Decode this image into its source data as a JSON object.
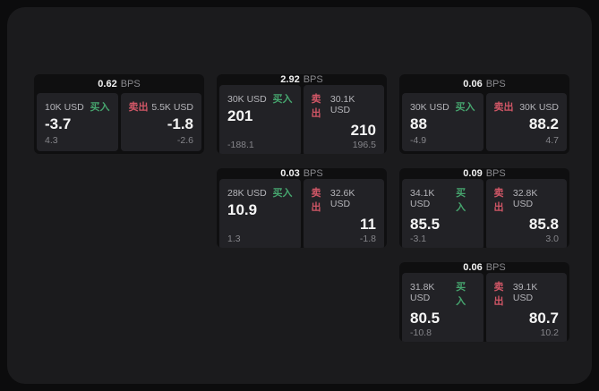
{
  "labels": {
    "bps_unit": "BPS",
    "buy": "买入",
    "sell": "卖出"
  },
  "colors": {
    "page_background": "#0c0c0d",
    "panel_background": "#1b1b1d",
    "card_background": "#0f0f10",
    "tile_background": "#222226",
    "buy_green": "#46a56e",
    "sell_red": "#d05666"
  },
  "cards": [
    {
      "bps": "0.62",
      "buy": {
        "size": "10K USD",
        "price": "-3.7",
        "delta": "4.3"
      },
      "sell": {
        "size": "5.5K USD",
        "price": "-1.8",
        "delta": "-2.6"
      }
    },
    {
      "bps": "2.92",
      "buy": {
        "size": "30K USD",
        "price": "201",
        "delta": "-188.1"
      },
      "sell": {
        "size": "30.1K USD",
        "price": "210",
        "delta": "196.5"
      }
    },
    {
      "bps": "0.06",
      "buy": {
        "size": "30K USD",
        "price": "88",
        "delta": "-4.9"
      },
      "sell": {
        "size": "30K USD",
        "price": "88.2",
        "delta": "4.7"
      }
    },
    {
      "bps": "0.03",
      "buy": {
        "size": "28K USD",
        "price": "10.9",
        "delta": "1.3"
      },
      "sell": {
        "size": "32.6K USD",
        "price": "11",
        "delta": "-1.8"
      }
    },
    {
      "bps": "0.09",
      "buy": {
        "size": "34.1K USD",
        "price": "85.5",
        "delta": "-3.1"
      },
      "sell": {
        "size": "32.8K USD",
        "price": "85.8",
        "delta": "3.0"
      }
    },
    {
      "bps": "0.06",
      "buy": {
        "size": "31.8K USD",
        "price": "80.5",
        "delta": "-10.8"
      },
      "sell": {
        "size": "39.1K USD",
        "price": "80.7",
        "delta": "10.2"
      }
    }
  ]
}
